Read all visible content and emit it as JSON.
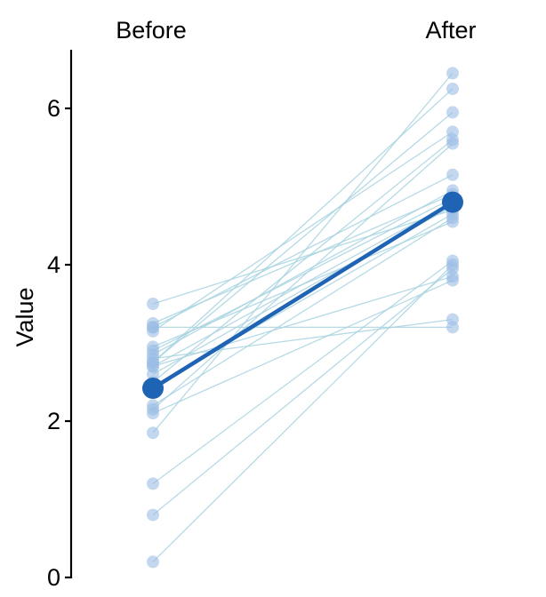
{
  "chart_data": {
    "type": "line",
    "subtype": "paired-slope",
    "categories": [
      "Before",
      "After"
    ],
    "xlabel": "",
    "ylabel": "Value",
    "ylim": [
      0,
      6.75
    ],
    "yticks": [
      0,
      2,
      4,
      6
    ],
    "grid": false,
    "legend": "none",
    "pairs": [
      [
        0.2,
        4.0
      ],
      [
        0.8,
        3.95
      ],
      [
        1.2,
        4.05
      ],
      [
        1.85,
        6.45
      ],
      [
        2.1,
        3.8
      ],
      [
        2.15,
        5.55
      ],
      [
        2.2,
        4.6
      ],
      [
        2.45,
        4.65
      ],
      [
        2.5,
        5.6
      ],
      [
        2.6,
        4.75
      ],
      [
        2.7,
        4.8
      ],
      [
        2.7,
        3.85
      ],
      [
        2.75,
        6.25
      ],
      [
        2.75,
        5.95
      ],
      [
        2.8,
        3.3
      ],
      [
        2.85,
        4.95
      ],
      [
        2.9,
        4.85
      ],
      [
        2.95,
        4.55
      ],
      [
        3.15,
        5.7
      ],
      [
        3.2,
        3.2
      ],
      [
        3.2,
        5.15
      ],
      [
        3.25,
        4.9
      ],
      [
        3.5,
        4.7
      ]
    ],
    "mean": [
      2.42,
      4.8
    ],
    "colors": {
      "pair_line": "#a8d4e0",
      "pair_point": "#9bbde4",
      "mean": "#1f63b5",
      "axis": "#000000"
    }
  }
}
